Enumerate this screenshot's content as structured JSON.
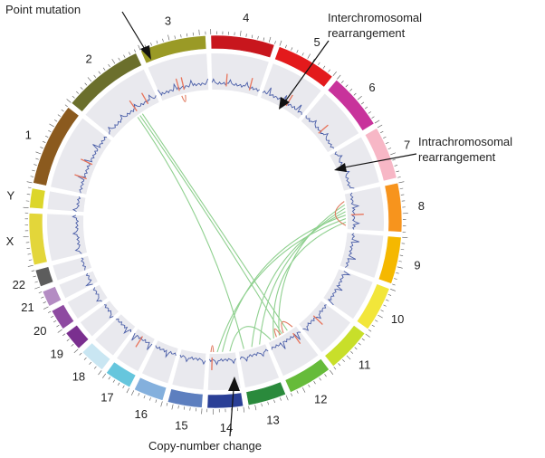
{
  "chromosomes": [
    {
      "label": "1",
      "color": "#8b5a1e",
      "size": 249
    },
    {
      "label": "2",
      "color": "#6b6f2c",
      "size": 243
    },
    {
      "label": "3",
      "color": "#9a9a26",
      "size": 198
    },
    {
      "label": "4",
      "color": "#c8161d",
      "size": 191
    },
    {
      "label": "5",
      "color": "#e31a1c",
      "size": 181
    },
    {
      "label": "6",
      "color": "#c8339b",
      "size": 171
    },
    {
      "label": "7",
      "color": "#f7b7c6",
      "size": 159
    },
    {
      "label": "8",
      "color": "#f7941d",
      "size": 146
    },
    {
      "label": "9",
      "color": "#f5b800",
      "size": 141
    },
    {
      "label": "10",
      "color": "#f2e63a",
      "size": 136
    },
    {
      "label": "11",
      "color": "#c8df2a",
      "size": 135
    },
    {
      "label": "12",
      "color": "#66bb3a",
      "size": 133
    },
    {
      "label": "13",
      "color": "#2a8a3c",
      "size": 115
    },
    {
      "label": "14",
      "color": "#2a3f96",
      "size": 107
    },
    {
      "label": "15",
      "color": "#5d7fbf",
      "size": 103
    },
    {
      "label": "16",
      "color": "#84b0dd",
      "size": 90
    },
    {
      "label": "17",
      "color": "#66c6dd",
      "size": 81
    },
    {
      "label": "18",
      "color": "#c9e6f2",
      "size": 78
    },
    {
      "label": "19",
      "color": "#7a2f8f",
      "size": 59
    },
    {
      "label": "20",
      "color": "#8e4aa1",
      "size": 63
    },
    {
      "label": "21",
      "color": "#b48cc3",
      "size": 48
    },
    {
      "label": "22",
      "color": "#5d5d5d",
      "size": 51
    },
    {
      "label": "X",
      "color": "#e3d63a",
      "size": 155
    },
    {
      "label": "Y",
      "color": "#dcd62a",
      "size": 59
    }
  ],
  "annotations": {
    "point_mutation": "Point mutation",
    "interchromosomal": [
      "Interchromosomal",
      "rearrangement"
    ],
    "intrachromosomal": [
      "Intrachromosomal",
      "rearrangement"
    ],
    "copy_number": "Copy-number change"
  },
  "colors": {
    "background_track": "#e9e9ee",
    "copy_number_line": "#4a5ea8",
    "rearrangement_marker": "#e8735a",
    "interchromosomal_link": "#8fd08f",
    "intrachromosomal_link": "#e07a5f",
    "arrow": "#111111"
  }
}
